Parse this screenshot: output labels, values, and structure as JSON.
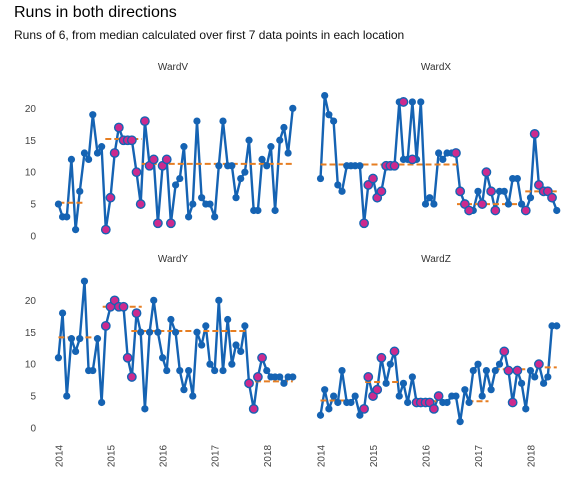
{
  "chart_data": {
    "type": "line",
    "title": "Runs in both directions",
    "subtitle": "Runs of 6, from median calculated over first 7 data points in each location",
    "x_range": [
      2013.8,
      2018.6
    ],
    "x_ticks": [
      2014,
      2015,
      2016,
      2017,
      2018
    ],
    "x_tick_labels": [
      "2014",
      "2015",
      "2016",
      "2017",
      "2018"
    ],
    "y_range": [
      0,
      23.5
    ],
    "y_ticks": [
      0,
      5,
      10,
      15,
      20
    ],
    "y_tick_labels": [
      "0",
      "5",
      "10",
      "15",
      "20"
    ],
    "colors": {
      "line": "#1563b3",
      "highlight": "#cc2a8e",
      "median": "#e67e22"
    },
    "grid": false,
    "panels": [
      {
        "name": "WardV",
        "x": [
          2014.0,
          2014.08,
          2014.16,
          2014.25,
          2014.33,
          2014.41,
          2014.5,
          2014.58,
          2014.66,
          2014.75,
          2014.83,
          2014.91,
          2015.0,
          2015.08,
          2015.16,
          2015.25,
          2015.33,
          2015.41,
          2015.5,
          2015.58,
          2015.66,
          2015.75,
          2015.83,
          2015.91,
          2016.0,
          2016.08,
          2016.16,
          2016.25,
          2016.33,
          2016.41,
          2016.5,
          2016.58,
          2016.66,
          2016.75,
          2016.83,
          2016.91,
          2017.0,
          2017.08,
          2017.16,
          2017.25,
          2017.33,
          2017.41,
          2017.5,
          2017.58,
          2017.66,
          2017.75,
          2017.83,
          2017.91,
          2018.0,
          2018.08,
          2018.16,
          2018.25,
          2018.33,
          2018.41,
          2018.5
        ],
        "y": [
          5,
          3,
          3,
          12,
          1,
          7,
          13,
          12,
          19,
          13,
          14,
          1,
          6,
          13,
          17,
          15,
          15,
          15,
          10,
          5,
          18,
          11,
          12,
          2,
          11,
          12,
          2,
          8,
          9,
          14,
          3,
          5,
          18,
          6,
          5,
          5,
          3,
          11,
          18,
          11,
          11,
          6,
          9,
          10,
          15,
          4,
          4,
          12,
          11,
          14,
          4,
          15,
          17,
          13,
          20
        ],
        "highlight_x": [
          2014.91,
          2015.0,
          2015.08,
          2015.16,
          2015.25,
          2015.33,
          2015.41,
          2015.5,
          2015.58,
          2015.66,
          2015.75,
          2015.83,
          2015.91,
          2016.0,
          2016.08,
          2016.16
        ],
        "highlight_y": [
          1,
          6,
          13,
          17,
          15,
          15,
          15,
          10,
          5,
          18,
          11,
          12,
          2,
          11,
          12,
          2
        ],
        "median_segments": [
          {
            "x_start": 2014.0,
            "x_end": 2014.5,
            "y": 5.2
          },
          {
            "x_start": 2014.9,
            "x_end": 2015.6,
            "y": 15.2
          },
          {
            "x_start": 2015.6,
            "x_end": 2018.5,
            "y": 11.3
          }
        ]
      },
      {
        "name": "WardX",
        "x": [
          2014.0,
          2014.08,
          2014.16,
          2014.25,
          2014.33,
          2014.41,
          2014.5,
          2014.58,
          2014.66,
          2014.75,
          2014.83,
          2014.91,
          2015.0,
          2015.08,
          2015.16,
          2015.25,
          2015.33,
          2015.41,
          2015.5,
          2015.58,
          2015.66,
          2015.75,
          2015.83,
          2015.91,
          2016.0,
          2016.08,
          2016.16,
          2016.25,
          2016.33,
          2016.41,
          2016.5,
          2016.58,
          2016.66,
          2016.75,
          2016.83,
          2016.91,
          2017.0,
          2017.08,
          2017.16,
          2017.25,
          2017.33,
          2017.41,
          2017.5,
          2017.58,
          2017.66,
          2017.75,
          2017.83,
          2017.91,
          2018.0,
          2018.08,
          2018.16,
          2018.25,
          2018.33,
          2018.41,
          2018.5
        ],
        "y": [
          9,
          22,
          19,
          18,
          8,
          7,
          11,
          11,
          11,
          11,
          2,
          8,
          9,
          6,
          7,
          11,
          11,
          11,
          21,
          12,
          12,
          21,
          12,
          21,
          5,
          6,
          5,
          13,
          12,
          13,
          13,
          13,
          7,
          5,
          4,
          4,
          7,
          5,
          10,
          7,
          4,
          7,
          7,
          5,
          9,
          9,
          5,
          4,
          6,
          16,
          8,
          7,
          7,
          6,
          4
        ],
        "highlight_x": [
          2014.83,
          2014.91,
          2015.0,
          2015.08,
          2015.16,
          2015.25,
          2015.33,
          2015.41,
          2015.58,
          2015.75,
          2016.58,
          2016.66,
          2016.75,
          2016.83,
          2017.08,
          2017.16,
          2017.25,
          2017.33,
          2017.91,
          2018.08,
          2018.16,
          2018.25,
          2018.33,
          2018.41
        ],
        "highlight_y": [
          2,
          8,
          9,
          6,
          7,
          11,
          11,
          11,
          21,
          12,
          13,
          7,
          5,
          4,
          5,
          10,
          7,
          4,
          4,
          16,
          8,
          7,
          7,
          6
        ],
        "median_segments": [
          {
            "x_start": 2014.0,
            "x_end": 2014.6,
            "y": 11.2
          },
          {
            "x_start": 2014.8,
            "x_end": 2016.6,
            "y": 11.2
          },
          {
            "x_start": 2016.6,
            "x_end": 2017.8,
            "y": 5.0
          },
          {
            "x_start": 2017.9,
            "x_end": 2018.5,
            "y": 7.0
          }
        ]
      },
      {
        "name": "WardY",
        "x": [
          2014.0,
          2014.08,
          2014.16,
          2014.25,
          2014.33,
          2014.41,
          2014.5,
          2014.58,
          2014.66,
          2014.75,
          2014.83,
          2014.91,
          2015.0,
          2015.08,
          2015.16,
          2015.25,
          2015.33,
          2015.41,
          2015.5,
          2015.58,
          2015.66,
          2015.75,
          2015.83,
          2015.91,
          2016.0,
          2016.08,
          2016.16,
          2016.25,
          2016.33,
          2016.41,
          2016.5,
          2016.58,
          2016.66,
          2016.75,
          2016.83,
          2016.91,
          2017.0,
          2017.08,
          2017.16,
          2017.25,
          2017.33,
          2017.41,
          2017.5,
          2017.58,
          2017.66,
          2017.75,
          2017.83,
          2017.91,
          2018.0,
          2018.08,
          2018.16,
          2018.25,
          2018.33,
          2018.41,
          2018.5
        ],
        "y": [
          11,
          18,
          5,
          14,
          12,
          14,
          23,
          9,
          9,
          14,
          4,
          16,
          19,
          20,
          19,
          19,
          11,
          8,
          18,
          15,
          3,
          15,
          20,
          15,
          11,
          9,
          17,
          15,
          9,
          6,
          9,
          5,
          15,
          13,
          16,
          10,
          9,
          20,
          9,
          17,
          10,
          13,
          12,
          16,
          7,
          3,
          8,
          11,
          9,
          8,
          8,
          8,
          7,
          8,
          8
        ],
        "highlight_x": [
          2014.91,
          2015.0,
          2015.08,
          2015.16,
          2015.25,
          2015.33,
          2015.41,
          2015.5,
          2017.66,
          2017.75,
          2017.83,
          2017.91
        ],
        "highlight_y": [
          16,
          19,
          20,
          19,
          19,
          11,
          8,
          18,
          7,
          3,
          8,
          11
        ],
        "median_segments": [
          {
            "x_start": 2014.0,
            "x_end": 2014.85,
            "y": 14.2
          },
          {
            "x_start": 2014.85,
            "x_end": 2015.6,
            "y": 19.0
          },
          {
            "x_start": 2015.4,
            "x_end": 2017.6,
            "y": 15.2
          },
          {
            "x_start": 2017.6,
            "x_end": 2018.5,
            "y": 7.3
          }
        ]
      },
      {
        "name": "WardZ",
        "x": [
          2014.0,
          2014.08,
          2014.16,
          2014.25,
          2014.33,
          2014.41,
          2014.5,
          2014.58,
          2014.66,
          2014.75,
          2014.83,
          2014.91,
          2015.0,
          2015.08,
          2015.16,
          2015.25,
          2015.33,
          2015.41,
          2015.5,
          2015.58,
          2015.66,
          2015.75,
          2015.83,
          2015.91,
          2016.0,
          2016.08,
          2016.16,
          2016.25,
          2016.33,
          2016.41,
          2016.5,
          2016.58,
          2016.66,
          2016.75,
          2016.83,
          2016.91,
          2017.0,
          2017.08,
          2017.16,
          2017.25,
          2017.33,
          2017.41,
          2017.5,
          2017.58,
          2017.66,
          2017.75,
          2017.83,
          2017.91,
          2018.0,
          2018.08,
          2018.16,
          2018.25,
          2018.33,
          2018.41,
          2018.5
        ],
        "y": [
          2,
          6,
          3,
          5,
          4,
          9,
          4,
          4,
          5,
          2,
          3,
          8,
          5,
          6,
          11,
          7,
          10,
          12,
          5,
          7,
          4,
          8,
          4,
          4,
          4,
          4,
          3,
          5,
          4,
          4,
          5,
          5,
          1,
          6,
          4,
          9,
          10,
          5,
          9,
          6,
          9,
          10,
          12,
          9,
          4,
          9,
          7,
          3,
          9,
          8,
          10,
          7,
          8,
          16,
          16
        ],
        "highlight_x": [
          2014.83,
          2014.91,
          2015.0,
          2015.08,
          2015.16,
          2015.41,
          2015.83,
          2015.91,
          2016.0,
          2016.08,
          2016.16,
          2016.25,
          2017.5,
          2017.58,
          2017.66,
          2017.75,
          2018.16
        ],
        "highlight_y": [
          3,
          8,
          5,
          6,
          11,
          12,
          4,
          4,
          4,
          4,
          3,
          5,
          12,
          9,
          4,
          9,
          10
        ],
        "median_segments": [
          {
            "x_start": 2014.0,
            "x_end": 2014.6,
            "y": 4.3
          },
          {
            "x_start": 2014.85,
            "x_end": 2015.6,
            "y": 7.2
          },
          {
            "x_start": 2015.75,
            "x_end": 2016.4,
            "y": 4.2
          },
          {
            "x_start": 2016.8,
            "x_end": 2017.2,
            "y": 4.2
          },
          {
            "x_start": 2017.3,
            "x_end": 2017.9,
            "y": 9.2
          },
          {
            "x_start": 2018.1,
            "x_end": 2018.5,
            "y": 9.5
          }
        ]
      }
    ]
  }
}
